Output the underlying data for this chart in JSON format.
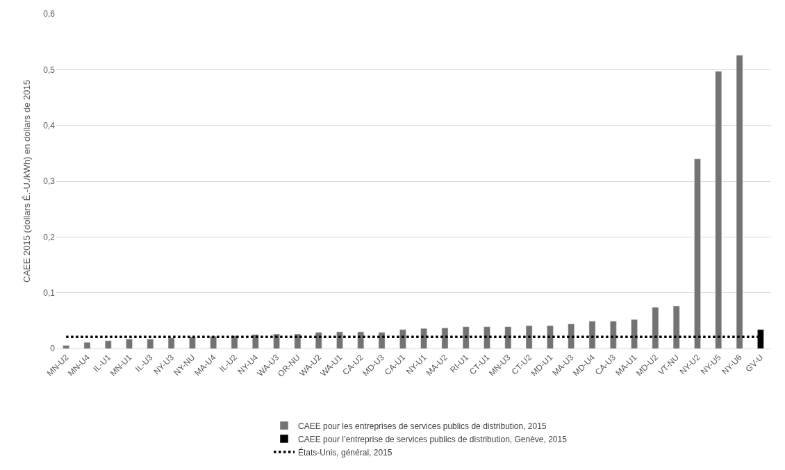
{
  "chart_data": {
    "type": "bar",
    "ylabel": "CAEE 2015 (dollars É.-U./kWh) en dollars de 2015",
    "categories": [
      "MN-U2",
      "MN-U4",
      "IL-U1",
      "MN-U1",
      "IL-U3",
      "NY-U3",
      "NY-NU",
      "MA-U4",
      "IL-U2",
      "NY-U4",
      "WA-U3",
      "OR-NU",
      "WA-U2",
      "WA-U1",
      "CA-U2",
      "MD-U3",
      "CA-U1",
      "NY-U1",
      "MA-U2",
      "RI-U1",
      "CT-U1",
      "MN-U3",
      "CT-U2",
      "MD-U1",
      "MA-U3",
      "MD-U4",
      "CA-U3",
      "MA-U1",
      "MD-U2",
      "VT-NU",
      "NY-U2",
      "NY-U5",
      "NY-U6",
      "GV-U"
    ],
    "series": [
      {
        "name": "CAEE pour les entreprises de services publics de distribution, 2015",
        "color": "#737373",
        "values": [
          0.0055,
          0.011,
          0.014,
          0.017,
          0.017,
          0.019,
          0.021,
          0.022,
          0.023,
          0.025,
          0.026,
          0.026,
          0.029,
          0.03,
          0.03,
          0.029,
          0.034,
          0.036,
          0.037,
          0.039,
          0.039,
          0.039,
          0.041,
          0.041,
          0.044,
          0.049,
          0.049,
          0.052,
          0.074,
          0.076,
          0.34,
          0.497,
          0.526,
          null
        ]
      },
      {
        "name": "CAEE pour l’entreprise de services publics de distribution, Genève, 2015",
        "color": "#000000",
        "values": [
          null,
          null,
          null,
          null,
          null,
          null,
          null,
          null,
          null,
          null,
          null,
          null,
          null,
          null,
          null,
          null,
          null,
          null,
          null,
          null,
          null,
          null,
          null,
          null,
          null,
          null,
          null,
          null,
          null,
          null,
          null,
          null,
          null,
          0.034
        ]
      },
      {
        "name": "États-Unis, général, 2015",
        "type": "line",
        "color": "#000000",
        "line_style": "dotted",
        "marker": "none",
        "values": [
          0.021,
          0.021,
          0.021,
          0.021,
          0.021,
          0.021,
          0.021,
          0.021,
          0.021,
          0.021,
          0.021,
          0.021,
          0.021,
          0.021,
          0.021,
          0.021,
          0.021,
          0.021,
          0.021,
          0.021,
          0.021,
          0.021,
          0.021,
          0.021,
          0.021,
          0.021,
          0.021,
          0.021,
          0.021,
          0.021,
          0.021,
          0.021,
          0.021,
          0.021
        ]
      }
    ],
    "ylim": [
      0,
      0.6
    ],
    "yticks": [
      0,
      {
        "value": 0.1,
        "label": "0,1"
      },
      {
        "value": 0.2,
        "label": "0,2"
      },
      {
        "value": 0.3,
        "label": "0,3"
      },
      {
        "value": 0.4,
        "label": "0,4"
      },
      {
        "value": 0.5,
        "label": "0,5"
      },
      {
        "value": 0.6,
        "label": "0,6"
      }
    ],
    "grid": "y",
    "legend": "bottom"
  }
}
